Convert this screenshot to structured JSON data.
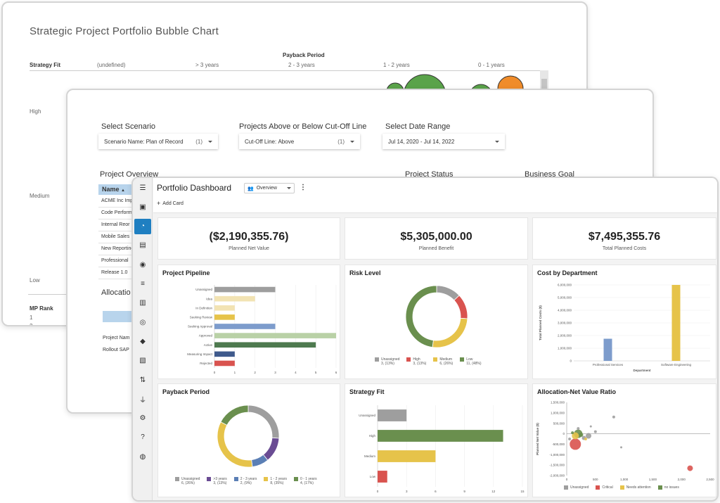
{
  "bubble_window": {
    "title": "Strategic Project Portfolio Bubble Chart",
    "payback_header": "Payback Period",
    "strategy_header": "Strategy Fit",
    "columns": [
      "(undefined)",
      "> 3 years",
      "2 - 3 years",
      "1 - 2 years",
      "0 - 1 years"
    ],
    "rows": [
      "High",
      "Medium",
      "Low"
    ],
    "rank_header": "MP Rank",
    "ranks": [
      "1",
      "2"
    ],
    "colors": {
      "green": "#5aa34a",
      "orange": "#f08c2a"
    }
  },
  "scenario_window": {
    "select_scenario_label": "Select Scenario",
    "scenario_name_label": "Scenario Name:",
    "scenario_value": "Plan of Record",
    "scenario_count": "(1)",
    "cutoff_heading": "Projects Above or Below Cut-Off Line",
    "cutoff_label": "Cut-Off Line:",
    "cutoff_value": "Above",
    "cutoff_count": "(1)",
    "date_heading": "Select Date Range",
    "date_value": "Jul 14, 2020 - Jul 14, 2022",
    "overview_heading": "Project Overview",
    "status_heading": "Project Status",
    "goal_heading": "Business Goal",
    "name_column": "Name",
    "projects": [
      "ACME Inc Imp",
      "Code Perform",
      "Internal Reor",
      "Mobile Sales",
      "New Reporting",
      "Professional",
      "Release 1.0"
    ],
    "allocation_heading": "Allocatio",
    "alloc_rows": [
      "Project Nam",
      "Rollout SAP"
    ]
  },
  "dashboard": {
    "title": "Portfolio Dashboard",
    "view_value": "Overview",
    "add_card_label": "Add Card",
    "sidebar_icons": [
      "menu-icon",
      "user-card-icon",
      "dashboard-icon",
      "contact-icon",
      "team-icon",
      "list-icon",
      "board-icon",
      "target-icon",
      "route-icon",
      "document-icon",
      "sort-icon",
      "plug-icon",
      "gear-icon",
      "help-icon",
      "compass-icon"
    ],
    "kpis": [
      {
        "value": "($2,190,355.76)",
        "label": "Planned Net Value"
      },
      {
        "value": "$5,305,000.00",
        "label": "Planned Benefit"
      },
      {
        "value": "$7,495,355.76",
        "label": "Total Planned Costs"
      }
    ],
    "cards": {
      "pipeline": "Project Pipeline",
      "risk": "Risk Level",
      "cost": "Cost by Department",
      "payback": "Payback Period",
      "strategy": "Strategy Fit",
      "allocation": "Allocation-Net Value Ratio"
    }
  },
  "chart_data": [
    {
      "id": "pipeline",
      "type": "bar",
      "orientation": "horizontal",
      "title": "Project Pipeline",
      "categories": [
        "Unassigned",
        "Idea",
        "In Definition",
        "Seeking Review",
        "Seeking Approval",
        "Approved",
        "Active",
        "Measuring Impact",
        "Rejected"
      ],
      "values": [
        3,
        2,
        1,
        1,
        3,
        6,
        5,
        1,
        1
      ],
      "colors": [
        "#9e9e9e",
        "#f2e3b3",
        "#f2e3b3",
        "#e6c34a",
        "#7d9ccc",
        "#b9d1a6",
        "#4e7a4f",
        "#3f5a8c",
        "#d9534f"
      ],
      "xticks": [
        "0",
        "1",
        "2",
        "3",
        "4",
        "5",
        "6"
      ],
      "xlim": [
        0,
        6
      ]
    },
    {
      "id": "risk",
      "type": "pie",
      "title": "Risk Level",
      "slices": [
        {
          "name": "Unassigned",
          "label": "3, (13%)",
          "value": 3,
          "color": "#9e9e9e"
        },
        {
          "name": "High",
          "label": "3, (13%)",
          "value": 3,
          "color": "#d9534f"
        },
        {
          "name": "Medium",
          "label": "6, (26%)",
          "value": 6,
          "color": "#e6c34a"
        },
        {
          "name": "Low",
          "label": "11, (48%)",
          "value": 11,
          "color": "#6a8f4e"
        }
      ]
    },
    {
      "id": "cost",
      "type": "bar",
      "title": "Cost by Department",
      "categories": [
        "Professional Services",
        "Software Engineering"
      ],
      "values": [
        1750000,
        6000000
      ],
      "colors": [
        "#7d9ccc",
        "#e6c34a"
      ],
      "yticks": [
        "0",
        "1,000,000",
        "2,000,000",
        "3,000,000",
        "4,000,000",
        "5,000,000",
        "6,000,000"
      ],
      "ylim": [
        0,
        6000000
      ],
      "xlabel": "Department",
      "ylabel": "Total Planned Costs ($)"
    },
    {
      "id": "payback",
      "type": "pie",
      "title": "Payback Period",
      "slices": [
        {
          "name": "Unassigned",
          "label": "6, (26%)",
          "value": 6,
          "color": "#9e9e9e"
        },
        {
          "name": ">3 years",
          "label": "3, (13%)",
          "value": 3,
          "color": "#6a4c93"
        },
        {
          "name": "2 - 3 years",
          "label": "2, (9%)",
          "value": 2,
          "color": "#5b7fb5"
        },
        {
          "name": "1 - 2 years",
          "label": "8, (35%)",
          "value": 8,
          "color": "#e6c34a"
        },
        {
          "name": "0 - 1 years",
          "label": "4, (17%)",
          "value": 4,
          "color": "#6a8f4e"
        }
      ]
    },
    {
      "id": "strategy",
      "type": "bar",
      "orientation": "horizontal",
      "title": "Strategy Fit",
      "categories": [
        "Unassigned",
        "High",
        "Medium",
        "Low"
      ],
      "values": [
        3,
        13,
        6,
        1
      ],
      "colors": [
        "#9e9e9e",
        "#6a8f4e",
        "#e6c34a",
        "#d9534f"
      ],
      "xticks": [
        "0",
        "3",
        "6",
        "9",
        "12",
        "15"
      ],
      "xlim": [
        0,
        15
      ]
    },
    {
      "id": "allocation",
      "type": "scatter",
      "title": "Allocation-Net Value Ratio",
      "xlabel": "Planned Allocations (d)",
      "ylabel": "Planned Net Value ($)",
      "xticks": [
        "0",
        "500",
        "1,000",
        "1,500",
        "2,000",
        "2,500"
      ],
      "yticks": [
        "1,500,000",
        "1,000,000",
        "500,000",
        "0",
        "-500,000",
        "-1,000,000",
        "-1,500,000",
        "-2,000,000"
      ],
      "xlim": [
        0,
        2500
      ],
      "ylim": [
        -2000000,
        1500000
      ],
      "legend": [
        {
          "name": "Unassigned",
          "color": "#9e9e9e"
        },
        {
          "name": "Critical",
          "color": "#d9534f"
        },
        {
          "name": "Needs attention",
          "color": "#e6c34a"
        },
        {
          "name": "no issues",
          "color": "#6a8f4e"
        }
      ],
      "points": [
        {
          "x": 150,
          "y": -500000,
          "r": 8,
          "c": "#d9534f"
        },
        {
          "x": 2150,
          "y": -1650000,
          "r": 4,
          "c": "#d9534f"
        },
        {
          "x": 200,
          "y": 0,
          "r": 6,
          "c": "#6a8f4e"
        },
        {
          "x": 150,
          "y": -100000,
          "r": 5,
          "c": "#e6c34a"
        },
        {
          "x": 380,
          "y": -100000,
          "r": 4,
          "c": "#9e9e9e"
        },
        {
          "x": 300,
          "y": -200000,
          "r": 3,
          "c": "#9e9e9e"
        },
        {
          "x": 200,
          "y": 250000,
          "r": 2,
          "c": "#9e9e9e"
        },
        {
          "x": 820,
          "y": 800000,
          "r": 2,
          "c": "#9e9e9e"
        },
        {
          "x": 500,
          "y": 100000,
          "r": 2,
          "c": "#9e9e9e"
        },
        {
          "x": 950,
          "y": -650000,
          "r": 1.5,
          "c": "#9e9e9e"
        },
        {
          "x": 420,
          "y": 350000,
          "r": 1.5,
          "c": "#9e9e9e"
        },
        {
          "x": 50,
          "y": -250000,
          "r": 2,
          "c": "#9e9e9e"
        },
        {
          "x": 250,
          "y": -50000,
          "r": 3,
          "c": "#6a8f4e"
        },
        {
          "x": 100,
          "y": 50000,
          "r": 2,
          "c": "#6a8f4e"
        },
        {
          "x": 330,
          "y": -250000,
          "r": 2,
          "c": "#e6c34a"
        }
      ]
    }
  ]
}
